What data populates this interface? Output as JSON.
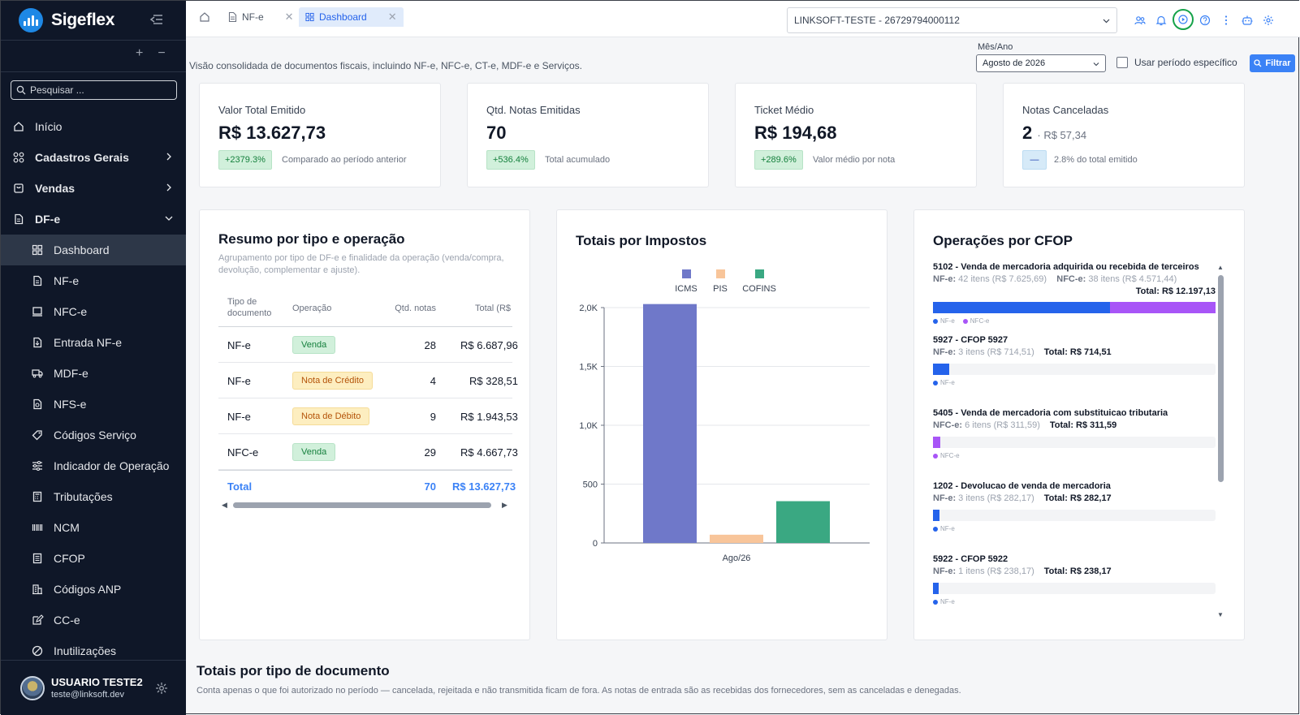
{
  "brand": {
    "name": "Sigeflex"
  },
  "sidebar": {
    "search_placeholder": "Pesquisar ...",
    "items": [
      {
        "label": "Início",
        "icon": "home-icon"
      },
      {
        "label": "Cadastros Gerais",
        "icon": "grid-icon"
      },
      {
        "label": "Vendas",
        "icon": "cart-icon"
      },
      {
        "label": "DF-e",
        "icon": "document-icon"
      },
      {
        "label": "Dashboard",
        "icon": "dashboard-icon"
      },
      {
        "label": "NF-e",
        "icon": "file-icon"
      },
      {
        "label": "NFC-e",
        "icon": "receipt-icon"
      },
      {
        "label": "Entrada NF-e",
        "icon": "file-import-icon"
      },
      {
        "label": "MDF-e",
        "icon": "truck-icon"
      },
      {
        "label": "NFS-e",
        "icon": "file-search-icon"
      },
      {
        "label": "Códigos Serviço",
        "icon": "tag-icon"
      },
      {
        "label": "Indicador de Operação",
        "icon": "sliders-icon"
      },
      {
        "label": "Tributações",
        "icon": "calculator-icon"
      },
      {
        "label": "NCM",
        "icon": "barcode-icon"
      },
      {
        "label": "CFOP",
        "icon": "list-icon"
      },
      {
        "label": "Códigos ANP",
        "icon": "building-icon"
      },
      {
        "label": "CC-e",
        "icon": "edit-icon"
      },
      {
        "label": "Inutilizações",
        "icon": "ban-icon"
      }
    ],
    "user": {
      "name": "USUARIO TESTE2",
      "email": "teste@linksoft.dev"
    }
  },
  "topbar": {
    "tabs": [
      {
        "label": "NF-e",
        "active": false
      },
      {
        "label": "Dashboard",
        "active": true
      }
    ],
    "company": "LINKSOFT-TESTE - 26729794000112",
    "icons": [
      "users-icon",
      "bell-icon",
      "play-circle-icon",
      "help-icon",
      "more-vertical-icon",
      "robot-icon",
      "settings-icon"
    ]
  },
  "header": {
    "subtitle": "Visão consolidada de documentos fiscais, incluindo NF-e, NFC-e, CT-e, MDF-e e Serviços.",
    "period_label": "Mês/Ano",
    "period_value": "Agosto de 2026",
    "specific_period_label": "Usar período específico",
    "filter_label": "Filtrar"
  },
  "kpis": [
    {
      "title": "Valor Total Emitido",
      "value": "R$ 13.627,73",
      "badge": "+2379.3%",
      "note": "Comparado ao período anterior"
    },
    {
      "title": "Qtd. Notas Emitidas",
      "value": "70",
      "badge": "+536.4%",
      "note": "Total acumulado"
    },
    {
      "title": "Ticket Médio",
      "value": "R$ 194,68",
      "badge": "+289.6%",
      "note": "Valor médio por nota"
    },
    {
      "title": "Notas Canceladas",
      "value": "2",
      "extra": "· R$ 57,34",
      "badge": "—",
      "note": "2.8% do total emitido"
    }
  ],
  "resumo": {
    "title": "Resumo por tipo e operação",
    "desc": "Agrupamento por tipo de DF-e e finalidade da operação (venda/compra, devolução, complementar e ajuste).",
    "headers": {
      "tipo": "Tipo de documento",
      "operacao": "Operação",
      "qtd": "Qtd. notas",
      "total": "Total (R$"
    },
    "rows": [
      {
        "tipo": "NF-e",
        "operacao": "Venda",
        "qtd": "28",
        "total": "R$ 6.687,96"
      },
      {
        "tipo": "NF-e",
        "operacao": "Nota de Crédito",
        "qtd": "4",
        "total": "R$ 328,51"
      },
      {
        "tipo": "NF-e",
        "operacao": "Nota de Débito",
        "qtd": "9",
        "total": "R$ 1.943,53"
      },
      {
        "tipo": "NFC-e",
        "operacao": "Venda",
        "qtd": "29",
        "total": "R$ 4.667,73"
      }
    ],
    "total": {
      "label": "Total",
      "qtd": "70",
      "valor": "R$ 13.627,73"
    }
  },
  "chart_data": {
    "type": "bar",
    "title": "Totais por Impostos",
    "categories": [
      "Ago/26"
    ],
    "series": [
      {
        "name": "ICMS",
        "values": [
          2030
        ],
        "color": "#6f78c9"
      },
      {
        "name": "PIS",
        "values": [
          70
        ],
        "color": "#f8c59a"
      },
      {
        "name": "COFINS",
        "values": [
          355
        ],
        "color": "#3aa882"
      }
    ],
    "yticks": [
      "0",
      "500",
      "1,0K",
      "1,5K",
      "2,0K"
    ],
    "ytick_values": [
      0,
      500,
      1000,
      1500,
      2000
    ],
    "ylim": [
      0,
      2000
    ],
    "legend": "top",
    "grid": true
  },
  "cfop": {
    "title": "Operações por CFOP",
    "items": [
      {
        "title": "5102 - Venda de mercadoria adquirida ou recebida de terceiros",
        "nfe_label": "NF-e:",
        "nfe": "42 itens (R$ 7.625,69)",
        "nfce_label": "NFC-e:",
        "nfce": "38 itens (R$ 4.571,44)",
        "total": "Total: R$ 12.197,13",
        "nfe_frac": 0.625,
        "nfce_frac": 0.375
      },
      {
        "title": "5927 - CFOP 5927",
        "nfe_label": "NF-e:",
        "nfe": "3 itens (R$ 714,51)",
        "total": "Total: R$ 714,51",
        "nfe_frac": 0.058,
        "nfce_frac": 0
      },
      {
        "title": "5405 - Venda de mercadoria com substituicao tributaria",
        "nfce_label": "NFC-e:",
        "nfce": "6 itens (R$ 311,59)",
        "total": "Total: R$ 311,59",
        "nfe_frac": 0,
        "nfce_frac": 0.025
      },
      {
        "title": "1202 - Devolucao de venda de mercadoria",
        "nfe_label": "NF-e:",
        "nfe": "3 itens (R$ 282,17)",
        "total": "Total: R$ 282,17",
        "nfe_frac": 0.023,
        "nfce_frac": 0
      },
      {
        "title": "5922 - CFOP 5922",
        "nfe_label": "NF-e:",
        "nfe": "1 itens (R$ 238,17)",
        "total": "Total: R$ 238,17",
        "nfe_frac": 0.019,
        "nfce_frac": 0
      }
    ],
    "legend_nfe": "NF-e",
    "legend_nfce": "NFC-e"
  },
  "section": {
    "title": "Totais por tipo de documento",
    "desc": "Conta apenas o que foi autorizado no período — cancelada, rejeitada e não transmitida ficam de fora. As notas de entrada são as recebidas dos fornecedores, sem as canceladas e denegadas."
  }
}
